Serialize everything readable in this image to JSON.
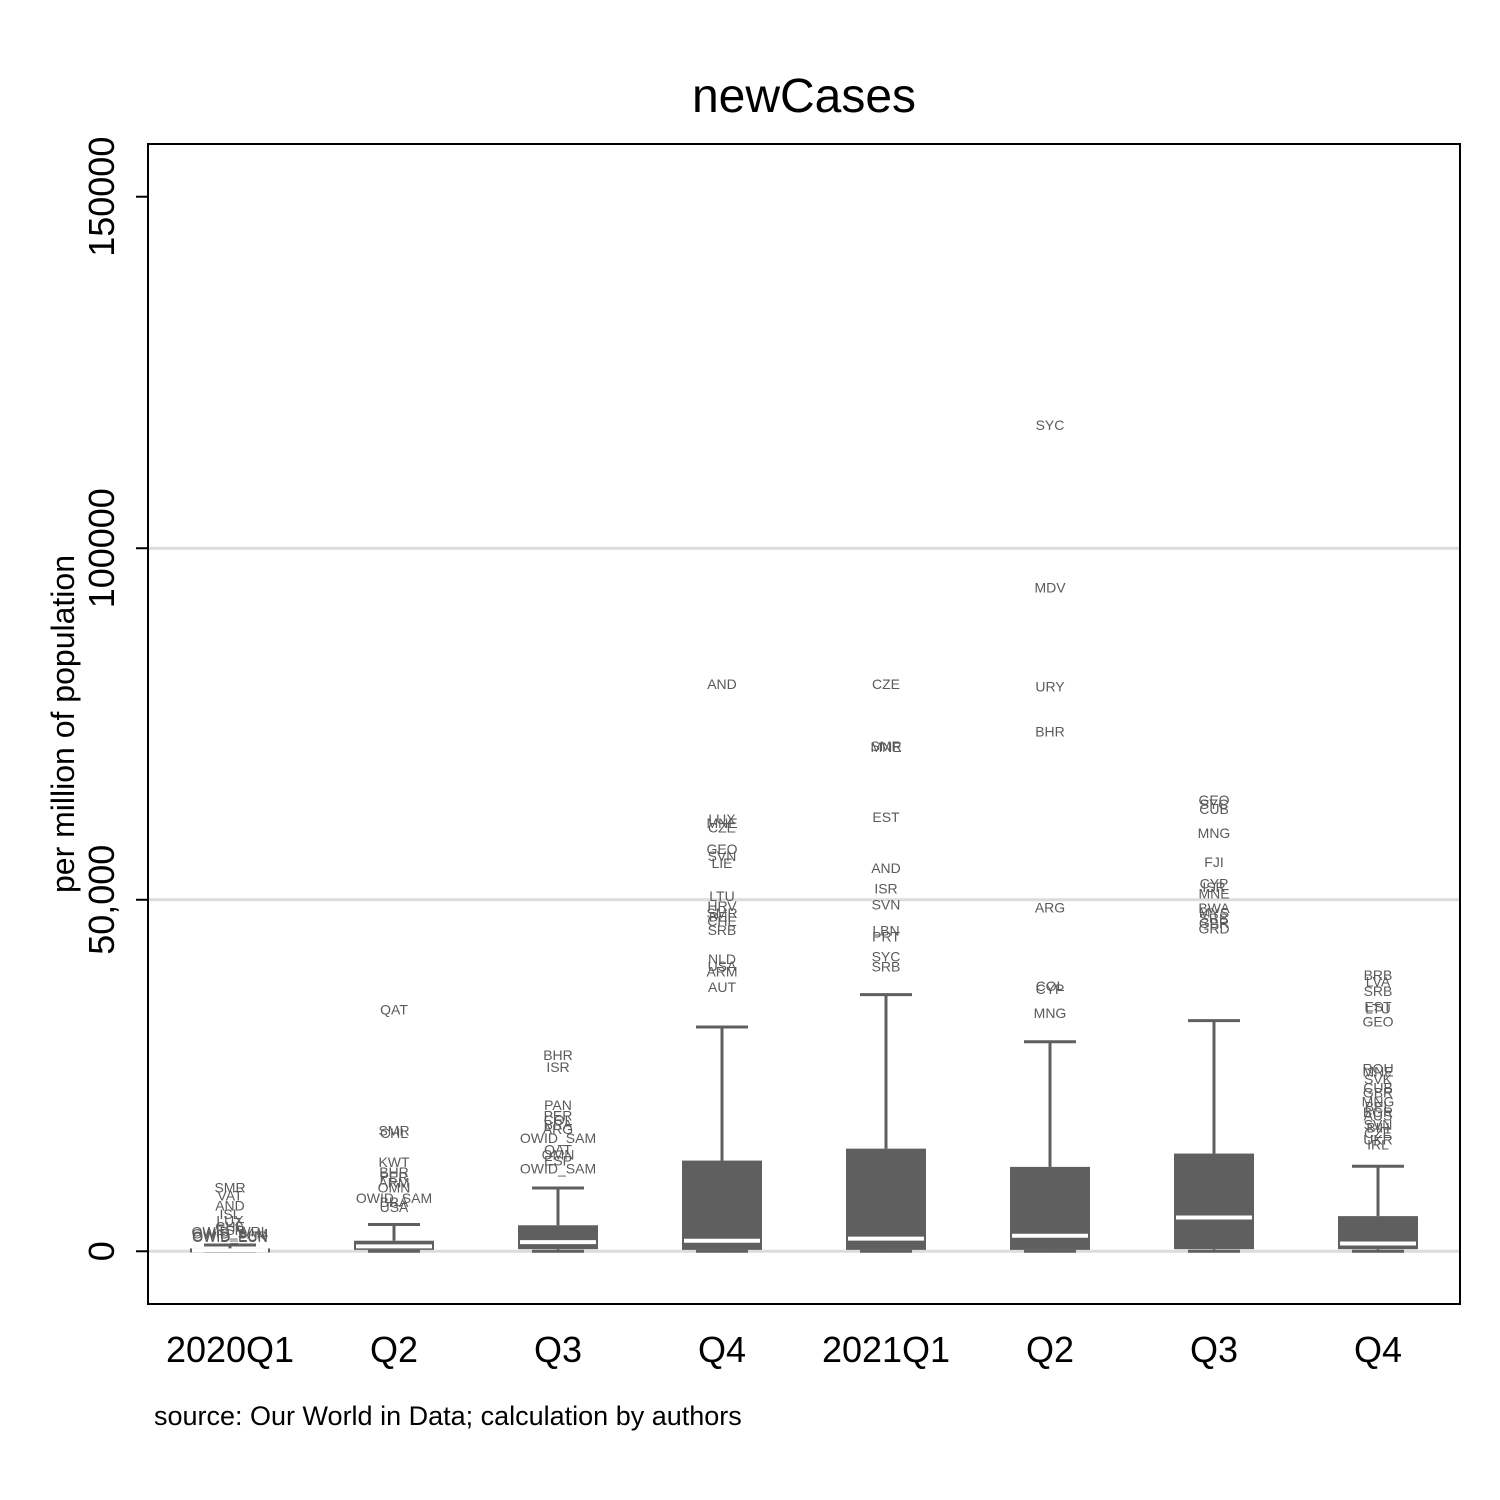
{
  "chart_data": {
    "type": "box",
    "title": "newCases",
    "ylabel": "per million of population",
    "xlabel": "",
    "source": "source: Our World in Data; calculation by authors",
    "ylim": [
      -7500,
      157500
    ],
    "yticks": [
      {
        "value": 0,
        "label": "0"
      },
      {
        "value": 50000,
        "label": "50,000"
      },
      {
        "value": 100000,
        "label": "100000"
      },
      {
        "value": 150000,
        "label": "150000"
      }
    ],
    "gridlines": [
      0,
      50000,
      100000
    ],
    "colors": {
      "box": "#5f5f5f",
      "median": "#ffffff",
      "grid": "#dcdcdc",
      "outlier_text": "#5a5a5a"
    },
    "categories": [
      "2020Q1",
      "Q2",
      "Q3",
      "Q4",
      "2021Q1",
      "Q2",
      "Q3",
      "Q4"
    ],
    "boxes": [
      {
        "min": 0,
        "q1": 30,
        "median": 120,
        "q3": 400,
        "max": 900
      },
      {
        "min": 0,
        "q1": 200,
        "median": 700,
        "q3": 1500,
        "max": 3800
      },
      {
        "min": 0,
        "q1": 300,
        "median": 1300,
        "q3": 3700,
        "max": 9000
      },
      {
        "min": 0,
        "q1": 200,
        "median": 1500,
        "q3": 12900,
        "max": 31900
      },
      {
        "min": 0,
        "q1": 200,
        "median": 1800,
        "q3": 14600,
        "max": 36500
      },
      {
        "min": 0,
        "q1": 200,
        "median": 2200,
        "q3": 12000,
        "max": 29800
      },
      {
        "min": 0,
        "q1": 300,
        "median": 4800,
        "q3": 13900,
        "max": 32800
      },
      {
        "min": 0,
        "q1": 300,
        "median": 1100,
        "q3": 5000,
        "max": 12100
      }
    ],
    "outliers": [
      [
        {
          "label": "SMR",
          "value": 9100
        },
        {
          "label": "VAT",
          "value": 7900
        },
        {
          "label": "AND",
          "value": 6500
        },
        {
          "label": "ISL",
          "value": 5300
        },
        {
          "label": "LUX",
          "value": 4400
        },
        {
          "label": "CHE",
          "value": 3500
        },
        {
          "label": "ESP",
          "value": 3000
        },
        {
          "label": "OWID_WRL",
          "value": 2800
        },
        {
          "label": "OWID_SAM",
          "value": 2500
        },
        {
          "label": "OWID_EUR",
          "value": 2200
        },
        {
          "label": "OWID_EUN",
          "value": 2000
        }
      ],
      [
        {
          "label": "QAT",
          "value": 34400
        },
        {
          "label": "SMR",
          "value": 17200
        },
        {
          "label": "CHL",
          "value": 16800
        },
        {
          "label": "KWT",
          "value": 12700
        },
        {
          "label": "BHR",
          "value": 11300
        },
        {
          "label": "PER",
          "value": 10600
        },
        {
          "label": "ARM",
          "value": 9800
        },
        {
          "label": "OMN",
          "value": 9100
        },
        {
          "label": "OWID_SAM",
          "value": 7600
        },
        {
          "label": "BRA",
          "value": 7000
        },
        {
          "label": "USA",
          "value": 6300
        }
      ],
      [
        {
          "label": "BHR",
          "value": 27900
        },
        {
          "label": "ISR",
          "value": 26200
        },
        {
          "label": "PAN",
          "value": 20800
        },
        {
          "label": "PER",
          "value": 19300
        },
        {
          "label": "COL",
          "value": 18700
        },
        {
          "label": "BRA",
          "value": 18000
        },
        {
          "label": "ARG",
          "value": 17400
        },
        {
          "label": "OWID_SAM",
          "value": 16100
        },
        {
          "label": "QAT",
          "value": 14500
        },
        {
          "label": "OMN",
          "value": 13800
        },
        {
          "label": "ESP",
          "value": 12900
        },
        {
          "label": "OWID_SAM",
          "value": 11800
        }
      ],
      [
        {
          "label": "AND",
          "value": 80700
        },
        {
          "label": "LUX",
          "value": 61500
        },
        {
          "label": "MNE",
          "value": 60900
        },
        {
          "label": "CZE",
          "value": 60300
        },
        {
          "label": "GEO",
          "value": 57200
        },
        {
          "label": "SVN",
          "value": 56200
        },
        {
          "label": "LIE",
          "value": 55200
        },
        {
          "label": "LTU",
          "value": 50500
        },
        {
          "label": "HRV",
          "value": 49100
        },
        {
          "label": "SMR",
          "value": 48100
        },
        {
          "label": "BEL",
          "value": 47600
        },
        {
          "label": "CHE",
          "value": 47000
        },
        {
          "label": "SRB",
          "value": 45700
        },
        {
          "label": "NLD",
          "value": 41600
        },
        {
          "label": "USA",
          "value": 40600
        },
        {
          "label": "ARM",
          "value": 39800
        },
        {
          "label": "AUT",
          "value": 37600
        }
      ],
      [
        {
          "label": "CZE",
          "value": 80700
        },
        {
          "label": "SMR",
          "value": 71900
        },
        {
          "label": "MNE",
          "value": 71700
        },
        {
          "label": "EST",
          "value": 61800
        },
        {
          "label": "AND",
          "value": 54500
        },
        {
          "label": "ISR",
          "value": 51600
        },
        {
          "label": "SVN",
          "value": 49300
        },
        {
          "label": "LBN",
          "value": 45600
        },
        {
          "label": "PRT",
          "value": 44800
        },
        {
          "label": "SYC",
          "value": 41900
        },
        {
          "label": "SRB",
          "value": 40500
        }
      ],
      [
        {
          "label": "SYC",
          "value": 117500
        },
        {
          "label": "MDV",
          "value": 94400
        },
        {
          "label": "URY",
          "value": 80300
        },
        {
          "label": "BHR",
          "value": 73900
        },
        {
          "label": "ARG",
          "value": 48900
        },
        {
          "label": "COL",
          "value": 37700
        },
        {
          "label": "CYP",
          "value": 37300
        },
        {
          "label": "MNG",
          "value": 33900
        }
      ],
      [
        {
          "label": "GEO",
          "value": 64200
        },
        {
          "label": "SYC",
          "value": 63600
        },
        {
          "label": "CUB",
          "value": 62900
        },
        {
          "label": "MNG",
          "value": 59500
        },
        {
          "label": "FJI",
          "value": 55400
        },
        {
          "label": "CYP",
          "value": 52300
        },
        {
          "label": "ISR",
          "value": 51800
        },
        {
          "label": "MNE",
          "value": 50900
        },
        {
          "label": "BWA",
          "value": 48800
        },
        {
          "label": "MYS",
          "value": 48200
        },
        {
          "label": "SRB",
          "value": 47400
        },
        {
          "label": "GBR",
          "value": 46700
        },
        {
          "label": "GRD",
          "value": 45900
        }
      ],
      [
        {
          "label": "BRB",
          "value": 39300
        },
        {
          "label": "LVA",
          "value": 38400
        },
        {
          "label": "SRB",
          "value": 37000
        },
        {
          "label": "EST",
          "value": 34800
        },
        {
          "label": "LTU",
          "value": 34500
        },
        {
          "label": "GEO",
          "value": 32700
        },
        {
          "label": "ROU",
          "value": 26000
        },
        {
          "label": "MNE",
          "value": 25600
        },
        {
          "label": "SVK",
          "value": 24500
        },
        {
          "label": "CUB",
          "value": 23300
        },
        {
          "label": "GBR",
          "value": 22600
        },
        {
          "label": "MNG",
          "value": 21300
        },
        {
          "label": "BEL",
          "value": 20600
        },
        {
          "label": "BGR",
          "value": 19800
        },
        {
          "label": "AUS",
          "value": 19300
        },
        {
          "label": "SVN",
          "value": 18000
        },
        {
          "label": "BIH",
          "value": 17600
        },
        {
          "label": "CZE",
          "value": 16800
        },
        {
          "label": "UKR",
          "value": 15900
        },
        {
          "label": "IRL",
          "value": 15200
        }
      ]
    ]
  }
}
